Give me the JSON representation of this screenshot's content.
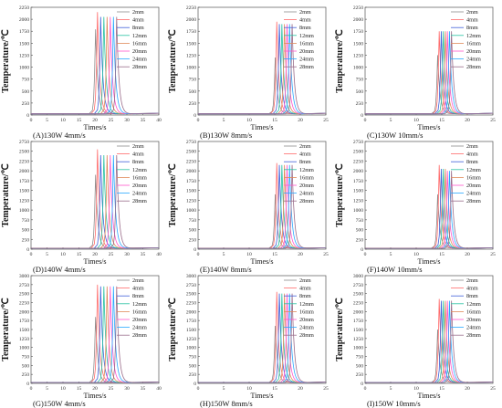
{
  "chart_data": [
    {
      "type": "line",
      "caption": "(A)130W 4mm/s",
      "xlabel": "Times/s",
      "ylabel": "Temperature/℃",
      "xlim": [
        0,
        40
      ],
      "ylim": [
        0,
        2250
      ],
      "xticks": [
        0,
        5,
        10,
        15,
        20,
        25,
        30,
        35,
        40
      ],
      "yticks": [
        0,
        250,
        500,
        750,
        1000,
        1250,
        1500,
        1750,
        2000,
        2250
      ],
      "legend_position": "top-right",
      "series": [
        {
          "name": "2mm",
          "peak_time": 20.2,
          "peak_temp": 1790
        },
        {
          "name": "4mm",
          "peak_time": 20.8,
          "peak_temp": 2150
        },
        {
          "name": "8mm",
          "peak_time": 21.8,
          "peak_temp": 2050
        },
        {
          "name": "12mm",
          "peak_time": 22.8,
          "peak_temp": 2050
        },
        {
          "name": "16mm",
          "peak_time": 23.8,
          "peak_temp": 2050
        },
        {
          "name": "20mm",
          "peak_time": 24.8,
          "peak_temp": 2050
        },
        {
          "name": "24mm",
          "peak_time": 25.8,
          "peak_temp": 2050
        },
        {
          "name": "28mm",
          "peak_time": 26.8,
          "peak_temp": 2050
        }
      ]
    },
    {
      "type": "line",
      "caption": "(B)130W 8mm/s",
      "xlabel": "Times/s",
      "ylabel": "Temperature/℃",
      "xlim": [
        0,
        25
      ],
      "ylim": [
        0,
        2250
      ],
      "xticks": [
        0,
        5,
        10,
        15,
        20,
        25
      ],
      "yticks": [
        0,
        250,
        500,
        750,
        1000,
        1250,
        1500,
        1750,
        2000,
        2250
      ],
      "legend_position": "top-right",
      "series": [
        {
          "name": "2mm",
          "peak_time": 15.1,
          "peak_temp": 1200
        },
        {
          "name": "4mm",
          "peak_time": 15.4,
          "peak_temp": 1950
        },
        {
          "name": "8mm",
          "peak_time": 15.9,
          "peak_temp": 1900
        },
        {
          "name": "12mm",
          "peak_time": 16.4,
          "peak_temp": 1900
        },
        {
          "name": "16mm",
          "peak_time": 16.9,
          "peak_temp": 1900
        },
        {
          "name": "20mm",
          "peak_time": 17.4,
          "peak_temp": 1900
        },
        {
          "name": "24mm",
          "peak_time": 17.9,
          "peak_temp": 1900
        },
        {
          "name": "28mm",
          "peak_time": 18.4,
          "peak_temp": 1900
        }
      ]
    },
    {
      "type": "line",
      "caption": "(C)130W 10mm/s",
      "xlabel": "Times/s",
      "ylabel": "Temperature/℃",
      "xlim": [
        0,
        25
      ],
      "ylim": [
        0,
        2250
      ],
      "xticks": [
        0,
        5,
        10,
        15,
        20,
        25
      ],
      "yticks": [
        0,
        250,
        500,
        750,
        1000,
        1250,
        1500,
        1750,
        2000,
        2250
      ],
      "legend_position": "top-right",
      "series": [
        {
          "name": "2mm",
          "peak_time": 14.2,
          "peak_temp": 1250
        },
        {
          "name": "4mm",
          "peak_time": 14.5,
          "peak_temp": 1750
        },
        {
          "name": "8mm",
          "peak_time": 14.9,
          "peak_temp": 1750
        },
        {
          "name": "12mm",
          "peak_time": 15.3,
          "peak_temp": 1750
        },
        {
          "name": "16mm",
          "peak_time": 15.7,
          "peak_temp": 1750
        },
        {
          "name": "20mm",
          "peak_time": 16.1,
          "peak_temp": 1750
        },
        {
          "name": "24mm",
          "peak_time": 16.5,
          "peak_temp": 1750
        },
        {
          "name": "28mm",
          "peak_time": 16.9,
          "peak_temp": 1750
        }
      ]
    },
    {
      "type": "line",
      "caption": "(D)140W 4mm/s",
      "xlabel": "Times/s",
      "ylabel": "Temperature/℃",
      "xlim": [
        0,
        40
      ],
      "ylim": [
        0,
        2750
      ],
      "xticks": [
        0,
        5,
        10,
        15,
        20,
        25,
        30,
        35,
        40
      ],
      "yticks": [
        0,
        250,
        500,
        750,
        1000,
        1250,
        1500,
        1750,
        2000,
        2250,
        2500,
        2750
      ],
      "legend_position": "top-right",
      "series": [
        {
          "name": "2mm",
          "peak_time": 20.2,
          "peak_temp": 1900
        },
        {
          "name": "4mm",
          "peak_time": 20.8,
          "peak_temp": 2550
        },
        {
          "name": "8mm",
          "peak_time": 21.8,
          "peak_temp": 2400
        },
        {
          "name": "12mm",
          "peak_time": 22.8,
          "peak_temp": 2400
        },
        {
          "name": "16mm",
          "peak_time": 23.8,
          "peak_temp": 2400
        },
        {
          "name": "20mm",
          "peak_time": 24.8,
          "peak_temp": 2400
        },
        {
          "name": "24mm",
          "peak_time": 25.8,
          "peak_temp": 2400
        },
        {
          "name": "28mm",
          "peak_time": 26.8,
          "peak_temp": 2400
        }
      ]
    },
    {
      "type": "line",
      "caption": "(E)140W 8mm/s",
      "xlabel": "Times/s",
      "ylabel": "Temperature/℃",
      "xlim": [
        0,
        25
      ],
      "ylim": [
        0,
        2750
      ],
      "xticks": [
        0,
        5,
        10,
        15,
        20,
        25
      ],
      "yticks": [
        0,
        250,
        500,
        750,
        1000,
        1250,
        1500,
        1750,
        2000,
        2250,
        2500,
        2750
      ],
      "legend_position": "top-right",
      "series": [
        {
          "name": "2mm",
          "peak_time": 15.1,
          "peak_temp": 1400
        },
        {
          "name": "4mm",
          "peak_time": 15.4,
          "peak_temp": 2200
        },
        {
          "name": "8mm",
          "peak_time": 15.9,
          "peak_temp": 2150
        },
        {
          "name": "12mm",
          "peak_time": 16.4,
          "peak_temp": 2150
        },
        {
          "name": "16mm",
          "peak_time": 16.9,
          "peak_temp": 2150
        },
        {
          "name": "20mm",
          "peak_time": 17.4,
          "peak_temp": 2150
        },
        {
          "name": "24mm",
          "peak_time": 17.9,
          "peak_temp": 2150
        },
        {
          "name": "28mm",
          "peak_time": 18.4,
          "peak_temp": 2150
        }
      ]
    },
    {
      "type": "line",
      "caption": "(F)140W 10mm/s",
      "xlabel": "Times/s",
      "ylabel": "Temperature/℃",
      "xlim": [
        0,
        25
      ],
      "ylim": [
        0,
        2750
      ],
      "xticks": [
        0,
        5,
        10,
        15,
        20,
        25
      ],
      "yticks": [
        0,
        250,
        500,
        750,
        1000,
        1250,
        1500,
        1750,
        2000,
        2250,
        2500,
        2750
      ],
      "legend_position": "top-right",
      "series": [
        {
          "name": "2mm",
          "peak_time": 14.2,
          "peak_temp": 1400
        },
        {
          "name": "4mm",
          "peak_time": 14.5,
          "peak_temp": 2150
        },
        {
          "name": "8mm",
          "peak_time": 14.9,
          "peak_temp": 2050
        },
        {
          "name": "12mm",
          "peak_time": 15.3,
          "peak_temp": 2050
        },
        {
          "name": "16mm",
          "peak_time": 15.7,
          "peak_temp": 2050
        },
        {
          "name": "20mm",
          "peak_time": 16.1,
          "peak_temp": 2000
        },
        {
          "name": "24mm",
          "peak_time": 16.5,
          "peak_temp": 2000
        },
        {
          "name": "28mm",
          "peak_time": 16.9,
          "peak_temp": 2000
        }
      ]
    },
    {
      "type": "line",
      "caption": "(G)150W 4mm/s",
      "xlabel": "Times/s",
      "ylabel": "Temperature/℃",
      "xlim": [
        0,
        40
      ],
      "ylim": [
        0,
        3000
      ],
      "xticks": [
        0,
        5,
        10,
        15,
        20,
        25,
        30,
        35,
        40
      ],
      "yticks": [
        0,
        250,
        500,
        750,
        1000,
        1250,
        1500,
        1750,
        2000,
        2250,
        2500,
        2750,
        3000
      ],
      "legend_position": "top-right",
      "series": [
        {
          "name": "2mm",
          "peak_time": 20.2,
          "peak_temp": 1850
        },
        {
          "name": "4mm",
          "peak_time": 20.8,
          "peak_temp": 2750
        },
        {
          "name": "8mm",
          "peak_time": 21.8,
          "peak_temp": 2700
        },
        {
          "name": "12mm",
          "peak_time": 22.8,
          "peak_temp": 2700
        },
        {
          "name": "16mm",
          "peak_time": 23.8,
          "peak_temp": 2700
        },
        {
          "name": "20mm",
          "peak_time": 24.8,
          "peak_temp": 2700
        },
        {
          "name": "24mm",
          "peak_time": 25.8,
          "peak_temp": 2700
        },
        {
          "name": "28mm",
          "peak_time": 26.8,
          "peak_temp": 2700
        }
      ]
    },
    {
      "type": "line",
      "caption": "(H)150W 8mm/s",
      "xlabel": "Times/s",
      "ylabel": "Temperature/℃",
      "xlim": [
        0,
        25
      ],
      "ylim": [
        0,
        3000
      ],
      "xticks": [
        0,
        5,
        10,
        15,
        20,
        25
      ],
      "yticks": [
        0,
        250,
        500,
        750,
        1000,
        1250,
        1500,
        1750,
        2000,
        2250,
        2500,
        2750,
        3000
      ],
      "legend_position": "top-right",
      "series": [
        {
          "name": "2mm",
          "peak_time": 15.1,
          "peak_temp": 1600
        },
        {
          "name": "4mm",
          "peak_time": 15.4,
          "peak_temp": 2550
        },
        {
          "name": "8mm",
          "peak_time": 15.9,
          "peak_temp": 2500
        },
        {
          "name": "12mm",
          "peak_time": 16.4,
          "peak_temp": 2500
        },
        {
          "name": "16mm",
          "peak_time": 16.9,
          "peak_temp": 2500
        },
        {
          "name": "20mm",
          "peak_time": 17.4,
          "peak_temp": 2500
        },
        {
          "name": "24mm",
          "peak_time": 17.9,
          "peak_temp": 2500
        },
        {
          "name": "28mm",
          "peak_time": 18.4,
          "peak_temp": 2500
        }
      ]
    },
    {
      "type": "line",
      "caption": "(I)150W 10mm/s",
      "xlabel": "Times/s",
      "ylabel": "Temperature/℃",
      "xlim": [
        0,
        25
      ],
      "ylim": [
        0,
        3000
      ],
      "xticks": [
        0,
        5,
        10,
        15,
        20,
        25
      ],
      "yticks": [
        0,
        250,
        500,
        750,
        1000,
        1250,
        1500,
        1750,
        2000,
        2250,
        2500,
        2750,
        3000
      ],
      "legend_position": "top-right",
      "series": [
        {
          "name": "2mm",
          "peak_time": 14.2,
          "peak_temp": 1500
        },
        {
          "name": "4mm",
          "peak_time": 14.5,
          "peak_temp": 2350
        },
        {
          "name": "8mm",
          "peak_time": 14.9,
          "peak_temp": 2300
        },
        {
          "name": "12mm",
          "peak_time": 15.3,
          "peak_temp": 2300
        },
        {
          "name": "16mm",
          "peak_time": 15.7,
          "peak_temp": 2300
        },
        {
          "name": "20mm",
          "peak_time": 16.1,
          "peak_temp": 2300
        },
        {
          "name": "24mm",
          "peak_time": 16.5,
          "peak_temp": 2300
        },
        {
          "name": "28mm",
          "peak_time": 16.9,
          "peak_temp": 2300
        }
      ]
    }
  ],
  "series_colors": [
    "#8c8c8c",
    "#ff6b6b",
    "#3f5fd9",
    "#27c2a2",
    "#e08a5a",
    "#ff55cc",
    "#2aa8ff",
    "#9a6c8a"
  ]
}
